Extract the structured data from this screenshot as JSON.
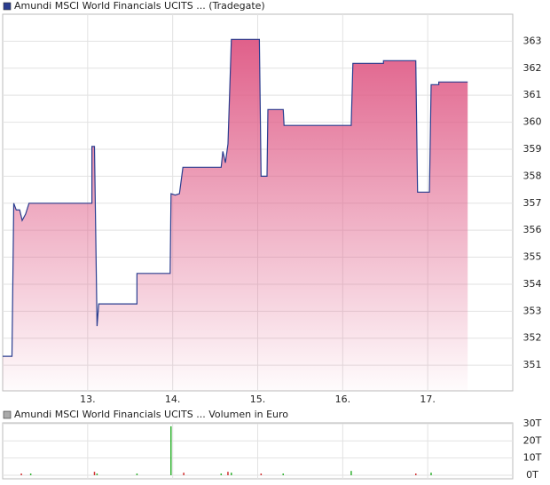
{
  "chart_data": [
    {
      "type": "area",
      "x": [
        12.0,
        12.11,
        12.13,
        12.16,
        12.2,
        12.23,
        12.27,
        12.31,
        13.05,
        13.05,
        13.08,
        13.11,
        13.13,
        13.58,
        13.58,
        13.97,
        13.98,
        14.03,
        14.08,
        14.12,
        14.57,
        14.59,
        14.62,
        14.65,
        14.69,
        15.02,
        15.04,
        15.11,
        15.12,
        15.3,
        15.31,
        16.1,
        16.12,
        16.48,
        16.48,
        16.86,
        16.88,
        17.02,
        17.04,
        17.13,
        17.13,
        17.47
      ],
      "series": [
        {
          "name": "Amundi MSCI World Financials UCITS ... (Tradegate)",
          "color": "#2a3d8f",
          "fill": "#e0608a",
          "values": [
            351.33,
            351.33,
            357.0,
            356.75,
            356.75,
            356.36,
            356.6,
            357.0,
            357.0,
            359.1,
            359.1,
            352.45,
            353.27,
            353.27,
            354.4,
            354.4,
            357.35,
            357.3,
            357.35,
            358.33,
            358.33,
            358.92,
            358.5,
            359.2,
            363.07,
            363.07,
            358.0,
            358.0,
            360.47,
            360.47,
            359.88,
            359.88,
            362.18,
            362.18,
            362.28,
            362.28,
            357.41,
            357.41,
            361.39,
            361.39,
            361.49,
            361.49
          ]
        }
      ],
      "xlim": [
        12,
        18
      ],
      "xticks": [
        {
          "value": 13,
          "label": "13."
        },
        {
          "value": 14,
          "label": "14."
        },
        {
          "value": 15,
          "label": "15."
        },
        {
          "value": 16,
          "label": "16."
        },
        {
          "value": 17,
          "label": "17."
        }
      ],
      "ylim": [
        350.05,
        364
      ],
      "yticks": [
        351,
        352,
        353,
        354,
        355,
        356,
        357,
        358,
        359,
        360,
        361,
        362,
        363
      ],
      "grid": true
    },
    {
      "type": "bar",
      "x": [
        12.22,
        12.33,
        13.08,
        13.11,
        13.58,
        13.98,
        14.13,
        14.57,
        14.65,
        14.69,
        15.04,
        15.3,
        16.1,
        16.86,
        17.04
      ],
      "series": [
        {
          "name": "Amundi MSCI World Financials UCITS ... Volumen in Euro",
          "color": "#aaaaaa",
          "colors": [
            "#d03030",
            "#30b030",
            "#d03030",
            "#30b030",
            "#30b030",
            "#30b030",
            "#d03030",
            "#30b030",
            "#d03030",
            "#30b030",
            "#d03030",
            "#30b030",
            "#30b030",
            "#d03030",
            "#30b030"
          ],
          "values": [
            1,
            1,
            2,
            1,
            1,
            28.5,
            1.5,
            1,
            2,
            1.5,
            1,
            1,
            2.5,
            1,
            1.5
          ]
        }
      ],
      "xlim": [
        12,
        18
      ],
      "xticks": [
        13,
        14,
        15,
        16,
        17
      ],
      "ylim": [
        0,
        30
      ],
      "yticks": [
        {
          "value": 0,
          "label": "0T"
        },
        {
          "value": 10,
          "label": "10T"
        },
        {
          "value": 20,
          "label": "20T"
        },
        {
          "value": 30,
          "label": "30T"
        }
      ],
      "grid": true
    }
  ]
}
